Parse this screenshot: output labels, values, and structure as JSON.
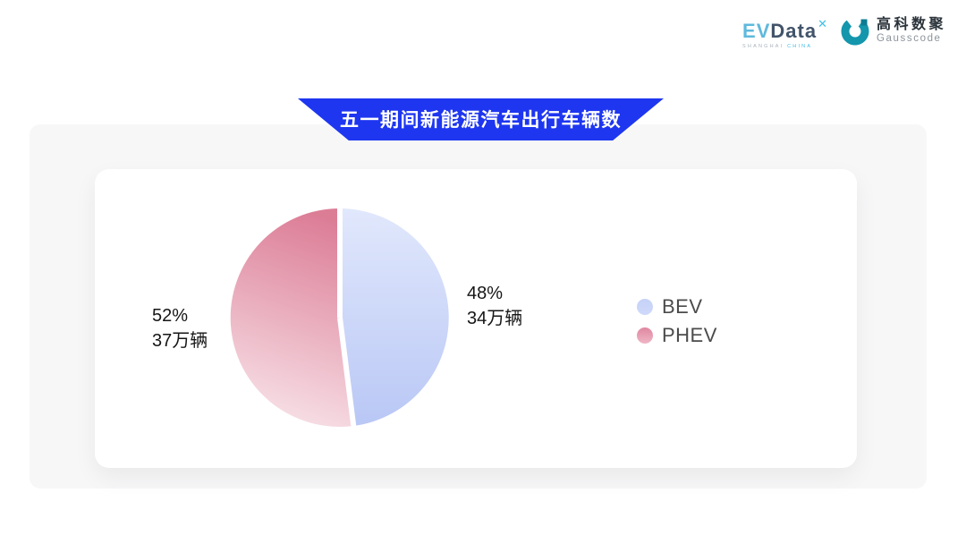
{
  "header_logos": {
    "evdata": {
      "part_ev": "EV",
      "part_data": "Data",
      "superscript": "✕",
      "tagline_left": "SHANGHAI",
      "tagline_right": "CHINA"
    },
    "gausscode": {
      "name_cn": "高科数聚",
      "name_en": "Gausscode",
      "mark_color": "#1496ac",
      "mark_accent_color": "#0c7c92"
    }
  },
  "banner": {
    "title": "五一期间新能源汽车出行车辆数",
    "background": "#1e36f0",
    "text_color": "#ffffff"
  },
  "chart_data": {
    "type": "pie",
    "title": "五一期间新能源汽车出行车辆数",
    "start_angle_deg": 0,
    "direction": "clockwise",
    "legend_position": "right",
    "gap_color": "#ffffff",
    "series": [
      {
        "name": "BEV",
        "percent": 48,
        "value": 34,
        "unit": "万辆",
        "percent_label": "48%",
        "value_label": "34万辆",
        "gradient": [
          "#e1e8fc",
          "#b9c7f5"
        ],
        "dot_gradient": [
          "#c5d1f8",
          "#cfd9fa"
        ]
      },
      {
        "name": "PHEV",
        "percent": 52,
        "value": 37,
        "unit": "万辆",
        "percent_label": "52%",
        "value_label": "37万辆",
        "gradient": [
          "#dc7d96",
          "#f8e3e9"
        ],
        "dot_gradient": [
          "#df87a0",
          "#efb6c6"
        ]
      }
    ]
  }
}
